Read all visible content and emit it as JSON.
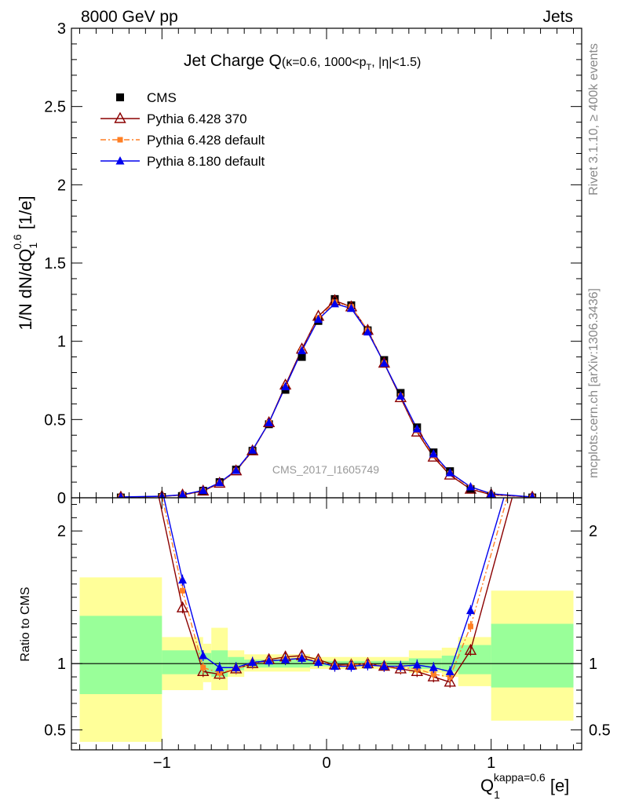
{
  "header": {
    "left": "8000 GeV pp",
    "right": "Jets"
  },
  "side_labels": {
    "rivet": "Rivet 3.1.10, ≥ 400k events",
    "mcplots": "mcplots.cern.ch [arXiv:1306.3436]"
  },
  "watermark": "CMS_2017_I1605749",
  "plot_title": {
    "main": "Jet Charge Q",
    "detail": "(κ=0.6, 1000<p",
    "sub": "T",
    "tail": ", |η|<1.5)"
  },
  "y_label": {
    "pre": "1/N dN/dQ",
    "sub": "1",
    "sup": "0.6",
    "post": " [1/e]"
  },
  "ratio_label": "Ratio to CMS",
  "x_label": {
    "main": "Q",
    "sub": "1",
    "sup": "kappa=0.6",
    "post": " [e]"
  },
  "legend": [
    {
      "name": "CMS",
      "color": "#000000",
      "marker": "square",
      "line": false
    },
    {
      "name": "Pythia 6.428 370",
      "color": "#8b0000",
      "marker": "triangle-open",
      "line": "solid"
    },
    {
      "name": "Pythia 6.428 default",
      "color": "#ff7f24",
      "marker": "square-small",
      "line": "dashdot"
    },
    {
      "name": "Pythia 8.180 default",
      "color": "#0000ee",
      "marker": "triangle",
      "line": "solid"
    }
  ],
  "chart_data": {
    "type": "line",
    "x_range": [
      -1.55,
      1.55
    ],
    "x_ticks": [
      -1,
      0,
      1
    ],
    "x_tick_labels": [
      "−1",
      "0",
      "1"
    ],
    "main_ylim": [
      0,
      3
    ],
    "main_y_ticks": [
      0,
      0.5,
      1,
      1.5,
      2,
      2.5,
      3
    ],
    "main_y_tick_labels": [
      "0",
      "0.5",
      "1",
      "1.5",
      "2",
      "2.5",
      "3"
    ],
    "ratio_ylim": [
      0.35,
      2.25
    ],
    "ratio_y_ticks": [
      0.5,
      1,
      2
    ],
    "ratio_y_tick_labels": [
      "0.5",
      "1",
      "2"
    ],
    "ratio_reference": 1,
    "x": [
      -1.25,
      -1.0,
      -0.875,
      -0.75,
      -0.65,
      -0.55,
      -0.45,
      -0.35,
      -0.25,
      -0.15,
      -0.05,
      0.05,
      0.15,
      0.25,
      0.35,
      0.45,
      0.55,
      0.65,
      0.75,
      0.875,
      1.0,
      1.25
    ],
    "cms": [
      0.002,
      0.005,
      0.012,
      0.045,
      0.1,
      0.18,
      0.3,
      0.47,
      0.69,
      0.9,
      1.13,
      1.27,
      1.23,
      1.07,
      0.88,
      0.67,
      0.45,
      0.29,
      0.17,
      0.055,
      0.012,
      0.002
    ],
    "series": [
      {
        "name": "Pythia 6.428 370",
        "values": [
          0.004,
          0.009,
          0.018,
          0.043,
          0.093,
          0.172,
          0.3,
          0.48,
          0.72,
          0.95,
          1.16,
          1.26,
          1.22,
          1.07,
          0.86,
          0.64,
          0.42,
          0.26,
          0.145,
          0.055,
          0.02,
          0.004
        ]
      },
      {
        "name": "Pythia 6.428 default",
        "values": [
          0.004,
          0.009,
          0.018,
          0.044,
          0.094,
          0.172,
          0.3,
          0.48,
          0.71,
          0.94,
          1.15,
          1.25,
          1.22,
          1.07,
          0.86,
          0.65,
          0.43,
          0.27,
          0.155,
          0.066,
          0.022,
          0.004
        ]
      },
      {
        "name": "Pythia 8.180 default",
        "values": [
          0.005,
          0.01,
          0.02,
          0.047,
          0.097,
          0.175,
          0.305,
          0.48,
          0.71,
          0.94,
          1.14,
          1.24,
          1.21,
          1.06,
          0.86,
          0.65,
          0.44,
          0.28,
          0.16,
          0.07,
          0.026,
          0.005
        ]
      }
    ],
    "ratio_x": [
      -0.875,
      -0.75,
      -0.65,
      -0.55,
      -0.45,
      -0.35,
      -0.25,
      -0.15,
      -0.05,
      0.05,
      0.15,
      0.25,
      0.35,
      0.45,
      0.55,
      0.65,
      0.75,
      0.875
    ],
    "ratio_series": [
      {
        "name": "Pythia 6.428 370",
        "values": [
          1.42,
          0.94,
          0.92,
          0.96,
          1.0,
          1.03,
          1.05,
          1.06,
          1.03,
          0.99,
          0.99,
          1.0,
          0.98,
          0.96,
          0.94,
          0.9,
          0.86,
          1.1
        ]
      },
      {
        "name": "Pythia 6.428 default",
        "values": [
          1.55,
          0.97,
          0.93,
          0.96,
          1.0,
          1.02,
          1.03,
          1.04,
          1.02,
          0.98,
          0.99,
          1.0,
          0.98,
          0.97,
          0.96,
          0.92,
          0.9,
          1.28
        ]
      },
      {
        "name": "Pythia 8.180 default",
        "values": [
          1.63,
          1.06,
          0.97,
          0.97,
          1.01,
          1.02,
          1.03,
          1.04,
          1.01,
          0.98,
          0.98,
          0.99,
          0.98,
          0.98,
          0.99,
          0.97,
          0.94,
          1.4
        ]
      }
    ],
    "ratio_ends": {
      "x_left": -1.0,
      "x_right": 1.0,
      "x_left_top": [
        -1.02,
        -1.0,
        -0.99
      ],
      "x_right_top": [
        1.13,
        1.1,
        1.08
      ]
    },
    "bands": [
      {
        "x0": -1.5,
        "x1": -1.0,
        "green": [
          0.77,
          1.36
        ],
        "yellow": [
          0.41,
          1.65
        ]
      },
      {
        "x0": -1.0,
        "x1": -0.75,
        "green": [
          0.92,
          1.1
        ],
        "yellow": [
          0.8,
          1.2
        ]
      },
      {
        "x0": -0.75,
        "x1": -0.7,
        "green": [
          0.92,
          1.08
        ],
        "yellow": [
          0.86,
          1.15
        ]
      },
      {
        "x0": -0.7,
        "x1": -0.6,
        "green": [
          0.9,
          1.1
        ],
        "yellow": [
          0.8,
          1.27
        ]
      },
      {
        "x0": -0.6,
        "x1": -0.5,
        "green": [
          0.95,
          1.05
        ],
        "yellow": [
          0.9,
          1.1
        ]
      },
      {
        "x0": -0.5,
        "x1": -0.1,
        "green": [
          0.97,
          1.03
        ],
        "yellow": [
          0.94,
          1.07
        ]
      },
      {
        "x0": -0.1,
        "x1": 0.5,
        "green": [
          0.98,
          1.02
        ],
        "yellow": [
          0.96,
          1.05
        ]
      },
      {
        "x0": 0.5,
        "x1": 0.7,
        "green": [
          0.96,
          1.04
        ],
        "yellow": [
          0.93,
          1.1
        ]
      },
      {
        "x0": 0.7,
        "x1": 0.8,
        "green": [
          0.94,
          1.06
        ],
        "yellow": [
          0.9,
          1.12
        ]
      },
      {
        "x0": 0.8,
        "x1": 1.0,
        "green": [
          0.92,
          1.14
        ],
        "yellow": [
          0.83,
          1.2
        ]
      },
      {
        "x0": 1.0,
        "x1": 1.5,
        "green": [
          0.82,
          1.3
        ],
        "yellow": [
          0.57,
          1.55
        ]
      }
    ],
    "legend_placement": "top-left",
    "grid": false
  }
}
